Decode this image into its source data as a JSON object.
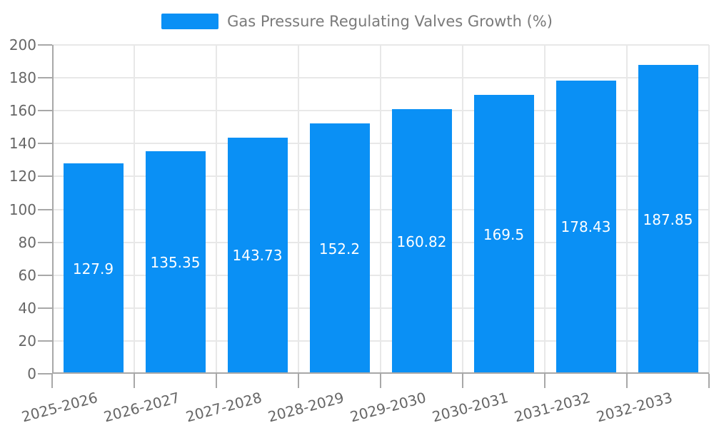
{
  "chart_data": {
    "type": "bar",
    "title": "Gas Pressure Regulating Valves Growth (%)",
    "categories": [
      "2025-2026",
      "2026-2027",
      "2027-2028",
      "2028-2029",
      "2029-2030",
      "2030-2031",
      "2031-2032",
      "2032-2033"
    ],
    "values": [
      127.9,
      135.35,
      143.73,
      152.2,
      160.82,
      169.5,
      178.43,
      187.85
    ],
    "xlabel": "",
    "ylabel": "",
    "ylim": [
      0,
      200
    ],
    "ytick_step": 20,
    "grid": true,
    "legend_position": "top",
    "value_labels": "inside-bar-center",
    "colors": {
      "bar": "#0a90f5",
      "grid": "#e8e8e8",
      "axis": "#a8a8a8",
      "tick_text": "#666666",
      "legend_text": "#7a7a7a",
      "value_text": "#ffffff",
      "background": "#ffffff"
    }
  }
}
